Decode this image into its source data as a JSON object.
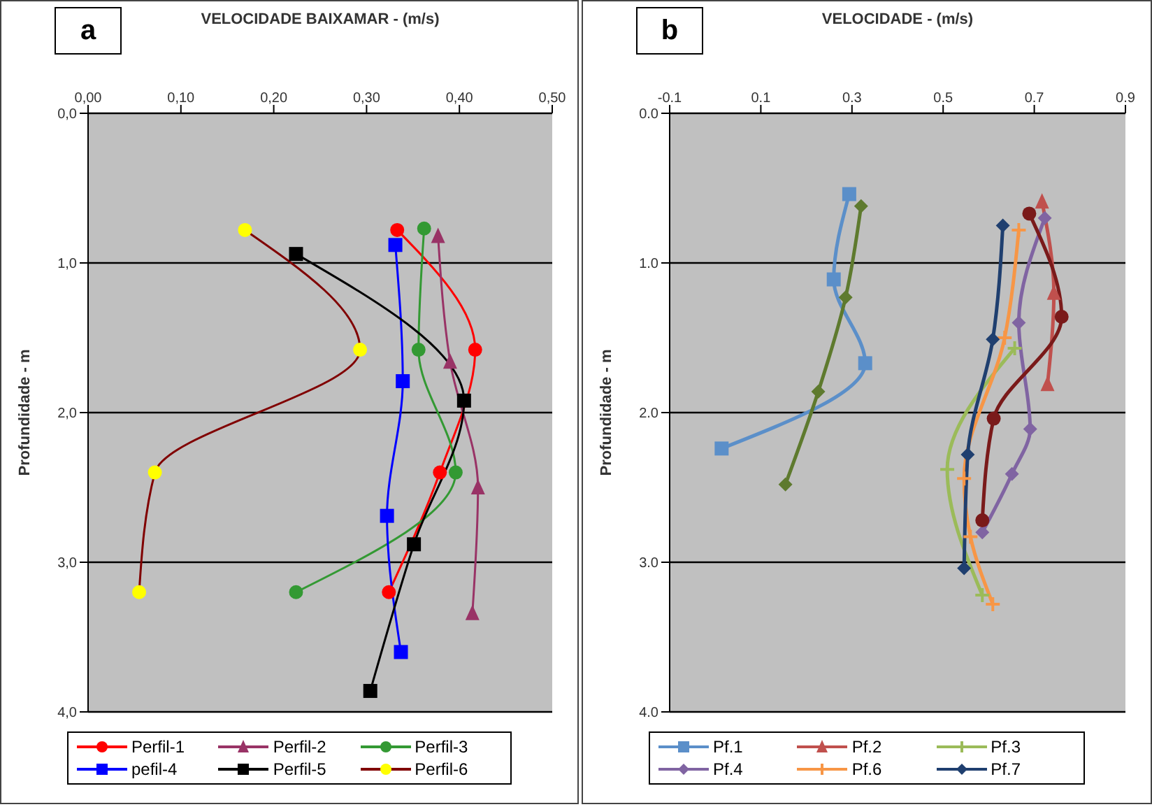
{
  "chart_data": [
    {
      "type": "line",
      "title": "a",
      "xlabel": "VELOCIDADE BAIXAMAR - (m/s)",
      "ylabel": "Profundidade - m",
      "xlim": [
        0,
        0.5
      ],
      "xticks": [
        {
          "value": 0,
          "label": "0,00"
        },
        {
          "value": 0.1,
          "label": "0,10"
        },
        {
          "value": 0.2,
          "label": "0,20"
        },
        {
          "value": 0.3,
          "label": "0,30"
        },
        {
          "value": 0.4,
          "label": "0,40"
        },
        {
          "value": 0.5,
          "label": "0,50"
        }
      ],
      "ylim": [
        4,
        0
      ],
      "yticks": [
        {
          "value": 0,
          "label": "0,0"
        },
        {
          "value": 1,
          "label": "1,0"
        },
        {
          "value": 2,
          "label": "2,0"
        },
        {
          "value": 3,
          "label": "3,0"
        },
        {
          "value": 4,
          "label": "4,0"
        }
      ],
      "grid": "y",
      "legend": "bottom",
      "series": [
        {
          "name": "Perfil-1",
          "color": "#ff0000",
          "marker": "circle",
          "x": [
            0.333,
            0.417,
            0.379,
            0.324
          ],
          "values": [
            0.78,
            1.58,
            2.4,
            3.2
          ]
        },
        {
          "name": "Perfil-2",
          "color": "#993366",
          "marker": "triangle",
          "x": [
            0.377,
            0.39,
            0.42,
            0.414
          ],
          "values": [
            0.82,
            1.66,
            2.5,
            3.34
          ]
        },
        {
          "name": "Perfil-3",
          "color": "#339933",
          "marker": "circle",
          "x": [
            0.362,
            0.356,
            0.396,
            0.224
          ],
          "values": [
            0.77,
            1.58,
            2.4,
            3.2
          ]
        },
        {
          "name": "pefil-4",
          "color": "#0000ff",
          "marker": "square",
          "x": [
            0.331,
            0.339,
            0.322,
            0.337
          ],
          "values": [
            0.88,
            1.79,
            2.69,
            3.6
          ]
        },
        {
          "name": "Perfil-5",
          "color": "#000000",
          "marker": "square",
          "x": [
            0.224,
            0.405,
            0.351,
            0.304
          ],
          "values": [
            0.94,
            1.92,
            2.88,
            3.86
          ]
        },
        {
          "name": "Perfil-6",
          "color": "#800000",
          "colors": [
            "#ffff00",
            "#ffff00",
            "#ffff00",
            "#ffff00"
          ],
          "marker": "circle",
          "x": [
            0.169,
            0.293,
            0.072,
            0.055
          ],
          "values": [
            0.78,
            1.58,
            2.4,
            3.2
          ]
        }
      ]
    },
    {
      "type": "line",
      "title": "b",
      "xlabel": "VELOCIDADE  - (m/s)",
      "ylabel": "Profundidade - m",
      "xlim": [
        -0.1,
        0.9
      ],
      "xticks": [
        -0.1,
        0.1,
        0.3,
        0.5,
        0.7,
        0.9
      ],
      "ylim": [
        4,
        0
      ],
      "yticks": [
        {
          "value": 0,
          "label": "0.0"
        },
        {
          "value": 1,
          "label": "1.0"
        },
        {
          "value": 2,
          "label": "2.0"
        },
        {
          "value": 3,
          "label": "3.0"
        },
        {
          "value": 4,
          "label": "4.0"
        }
      ],
      "grid": "y",
      "legend": "bottom",
      "series": [
        {
          "name": "Pf.1",
          "color": "#5b8fc9",
          "marker": "square",
          "x": [
            0.294,
            0.26,
            0.329,
            0.014
          ],
          "values": [
            0.54,
            1.11,
            1.67,
            2.24
          ]
        },
        {
          "color": "#5e7a2e",
          "marker": "diamond",
          "x": [
            0.32,
            0.286,
            0.226,
            0.154
          ],
          "values": [
            0.62,
            1.23,
            1.86,
            2.48
          ]
        },
        {
          "name": "Pf.2",
          "color": "#c0504d",
          "marker": "triangle",
          "x": [
            0.717,
            0.743,
            0.729
          ],
          "values": [
            0.59,
            1.2,
            1.81
          ]
        },
        {
          "name": "Pf.3",
          "color": "#9bbb59",
          "marker": "cross",
          "x": [
            0.657,
            0.509,
            0.586
          ],
          "values": [
            1.57,
            2.38,
            3.22
          ]
        },
        {
          "name": "Pf.4",
          "color": "#8064a2",
          "marker": "diamond",
          "x": [
            0.723,
            0.666,
            0.691,
            0.651,
            0.586
          ],
          "values": [
            0.7,
            1.4,
            2.11,
            2.41,
            2.8
          ]
        },
        {
          "name": "Pf.6",
          "color": "#f79646",
          "marker": "cross",
          "x": [
            0.666,
            0.635,
            0.546,
            0.56,
            0.609
          ],
          "values": [
            0.78,
            1.5,
            2.44,
            2.83,
            3.28
          ]
        },
        {
          "name": "Pf.7",
          "color": "#1f3f6f",
          "marker": "diamond",
          "x": [
            0.631,
            0.609,
            0.554,
            0.546
          ],
          "values": [
            0.75,
            1.51,
            2.28,
            3.04
          ]
        },
        {
          "color": "#7a1a1a",
          "marker": "circle",
          "x": [
            0.689,
            0.76,
            0.611,
            0.586
          ],
          "values": [
            0.67,
            1.36,
            2.04,
            2.72
          ]
        }
      ]
    }
  ]
}
